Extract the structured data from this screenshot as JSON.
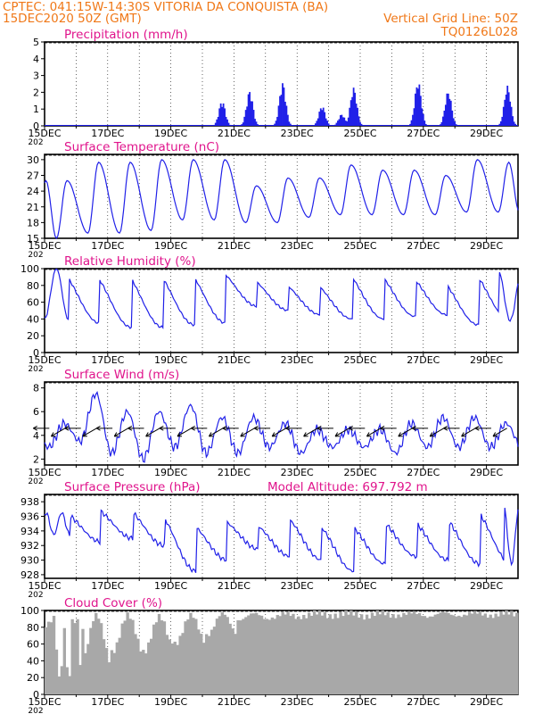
{
  "header": {
    "left_line1": "CPTEC:   041:15W-14:30S   VITORIA DA CONQUISTA (BA)",
    "left_line2": "15DEC2020 50Z (GMT)",
    "right_line2": "Vertical Grid Line: 50Z",
    "right_line3": "TQ0126L028"
  },
  "colors": {
    "header": "#f07818",
    "title": "#e0148c",
    "series": "#2020e8",
    "cloud": "#a8a8a8",
    "axis": "#000000"
  },
  "x_axis": {
    "start": "15DEC2020 00Z",
    "end": "30DEC2020 00Z",
    "tick_labels": [
      "15DEC",
      "17DEC",
      "19DEC",
      "21DEC",
      "23DEC",
      "25DEC",
      "27DEC",
      "29DEC"
    ],
    "year_fragment": "202"
  },
  "chart_data": [
    {
      "id": "precip",
      "type": "bar",
      "title": "Precipitation (mm/h)",
      "ylim": [
        0,
        5
      ],
      "yticks": [
        0,
        1,
        2,
        3,
        4,
        5
      ],
      "events": [
        {
          "center": "20DEC 15Z",
          "peak": 1.5
        },
        {
          "center": "21DEC 12Z",
          "peak": 2.1
        },
        {
          "center": "22DEC 13Z",
          "peak": 2.6
        },
        {
          "center": "23DEC 19Z",
          "peak": 1.2
        },
        {
          "center": "24DEC 10Z",
          "peak": 0.7
        },
        {
          "center": "24DEC 19Z",
          "peak": 2.3
        },
        {
          "center": "26DEC 20Z",
          "peak": 2.7
        },
        {
          "center": "27DEC 19Z",
          "peak": 2.1
        },
        {
          "center": "29DEC 16Z",
          "peak": 2.4
        }
      ]
    },
    {
      "id": "temp",
      "type": "line",
      "title": "Surface Temperature (nC)",
      "ylim": [
        15,
        31
      ],
      "yticks": [
        15,
        18,
        21,
        24,
        27,
        30
      ],
      "daily": [
        {
          "date": "15DEC",
          "min": 15.0,
          "max": 26.0
        },
        {
          "date": "16DEC",
          "min": 16.0,
          "max": 29.5
        },
        {
          "date": "17DEC",
          "min": 16.0,
          "max": 29.5
        },
        {
          "date": "18DEC",
          "min": 16.5,
          "max": 30.0
        },
        {
          "date": "19DEC",
          "min": 18.5,
          "max": 30.0
        },
        {
          "date": "20DEC",
          "min": 18.5,
          "max": 30.0
        },
        {
          "date": "21DEC",
          "min": 18.0,
          "max": 25.0
        },
        {
          "date": "22DEC",
          "min": 18.0,
          "max": 26.5
        },
        {
          "date": "23DEC",
          "min": 19.0,
          "max": 26.5
        },
        {
          "date": "24DEC",
          "min": 19.5,
          "max": 29.0
        },
        {
          "date": "25DEC",
          "min": 19.5,
          "max": 28.0
        },
        {
          "date": "26DEC",
          "min": 19.5,
          "max": 28.0
        },
        {
          "date": "27DEC",
          "min": 19.5,
          "max": 27.0
        },
        {
          "date": "28DEC",
          "min": 20.0,
          "max": 30.0
        },
        {
          "date": "29DEC",
          "min": 20.0,
          "max": 29.5
        }
      ]
    },
    {
      "id": "rh",
      "type": "line",
      "title": "Relative Humidity (%)",
      "ylim": [
        0,
        100
      ],
      "yticks": [
        0,
        20,
        40,
        60,
        80,
        100
      ],
      "daily": [
        {
          "date": "15DEC",
          "min": 40,
          "max": 100
        },
        {
          "date": "16DEC",
          "min": 35,
          "max": 98
        },
        {
          "date": "17DEC",
          "min": 30,
          "max": 100
        },
        {
          "date": "18DEC",
          "min": 30,
          "max": 100
        },
        {
          "date": "19DEC",
          "min": 33,
          "max": 100
        },
        {
          "date": "20DEC",
          "min": 35,
          "max": 100
        },
        {
          "date": "21DEC",
          "min": 55,
          "max": 90
        },
        {
          "date": "22DEC",
          "min": 50,
          "max": 85
        },
        {
          "date": "23DEC",
          "min": 45,
          "max": 85
        },
        {
          "date": "24DEC",
          "min": 40,
          "max": 100
        },
        {
          "date": "25DEC",
          "min": 40,
          "max": 98
        },
        {
          "date": "26DEC",
          "min": 43,
          "max": 95
        },
        {
          "date": "27DEC",
          "min": 45,
          "max": 90
        },
        {
          "date": "28DEC",
          "min": 33,
          "max": 100
        },
        {
          "date": "29DEC",
          "min": 38,
          "max": 98
        }
      ]
    },
    {
      "id": "wind",
      "type": "line",
      "title": "Surface Wind (m/s)",
      "ylim": [
        1.5,
        8.5
      ],
      "yticks": [
        2,
        4,
        6,
        8
      ],
      "daily": [
        {
          "date": "15DEC",
          "min": 3.0,
          "max": 5.0
        },
        {
          "date": "16DEC",
          "min": 3.5,
          "max": 7.5
        },
        {
          "date": "17DEC",
          "min": 2.5,
          "max": 6.0
        },
        {
          "date": "18DEC",
          "min": 2.0,
          "max": 6.0
        },
        {
          "date": "19DEC",
          "min": 3.0,
          "max": 6.5
        },
        {
          "date": "20DEC",
          "min": 2.5,
          "max": 5.5
        },
        {
          "date": "21DEC",
          "min": 2.5,
          "max": 5.5
        },
        {
          "date": "22DEC",
          "min": 3.0,
          "max": 5.0
        },
        {
          "date": "23DEC",
          "min": 2.5,
          "max": 4.5
        },
        {
          "date": "24DEC",
          "min": 3.0,
          "max": 4.5
        },
        {
          "date": "25DEC",
          "min": 3.0,
          "max": 4.5
        },
        {
          "date": "26DEC",
          "min": 2.5,
          "max": 5.0
        },
        {
          "date": "27DEC",
          "min": 3.0,
          "max": 5.5
        },
        {
          "date": "28DEC",
          "min": 3.0,
          "max": 5.5
        },
        {
          "date": "29DEC",
          "min": 3.0,
          "max": 5.0
        }
      ],
      "direction": "from E/NE (arrows point toward W/SW)"
    },
    {
      "id": "press",
      "type": "line",
      "title": "Surface Pressure (hPa)",
      "annotation": "Model Altitude: 697.792  m",
      "ylim": [
        927.5,
        939
      ],
      "yticks": [
        928,
        930,
        932,
        934,
        936,
        938
      ],
      "daily": [
        {
          "date": "15DEC",
          "min": 933.5,
          "max": 936.5
        },
        {
          "date": "16DEC",
          "min": 932.5,
          "max": 937.0
        },
        {
          "date": "17DEC",
          "min": 933.0,
          "max": 937.0
        },
        {
          "date": "18DEC",
          "min": 932.0,
          "max": 936.5
        },
        {
          "date": "19DEC",
          "min": 928.5,
          "max": 935.0
        },
        {
          "date": "20DEC",
          "min": 930.0,
          "max": 935.5
        },
        {
          "date": "21DEC",
          "min": 931.5,
          "max": 935.0
        },
        {
          "date": "22DEC",
          "min": 930.5,
          "max": 936.0
        },
        {
          "date": "23DEC",
          "min": 930.0,
          "max": 935.0
        },
        {
          "date": "24DEC",
          "min": 928.5,
          "max": 935.0
        },
        {
          "date": "25DEC",
          "min": 929.5,
          "max": 935.5
        },
        {
          "date": "26DEC",
          "min": 930.5,
          "max": 935.5
        },
        {
          "date": "27DEC",
          "min": 930.0,
          "max": 936.0
        },
        {
          "date": "28DEC",
          "min": 929.5,
          "max": 937.0
        },
        {
          "date": "29DEC",
          "min": 929.5,
          "max": 937.5
        }
      ]
    },
    {
      "id": "cloud",
      "type": "area",
      "title": "Cloud Cover (%)",
      "ylim": [
        0,
        100
      ],
      "yticks": [
        0,
        20,
        40,
        60,
        80,
        100
      ],
      "daily": [
        {
          "date": "15DEC",
          "min": 5,
          "max": 95
        },
        {
          "date": "16DEC",
          "min": 35,
          "max": 95
        },
        {
          "date": "17DEC",
          "min": 50,
          "max": 95
        },
        {
          "date": "18DEC",
          "min": 50,
          "max": 93
        },
        {
          "date": "19DEC",
          "min": 60,
          "max": 95
        },
        {
          "date": "20DEC",
          "min": 70,
          "max": 97
        },
        {
          "date": "21DEC",
          "min": 88,
          "max": 97
        },
        {
          "date": "22DEC",
          "min": 90,
          "max": 97
        },
        {
          "date": "23DEC",
          "min": 92,
          "max": 98
        },
        {
          "date": "24DEC",
          "min": 93,
          "max": 98
        },
        {
          "date": "25DEC",
          "min": 92,
          "max": 98
        },
        {
          "date": "26DEC",
          "min": 93,
          "max": 98
        },
        {
          "date": "27DEC",
          "min": 92,
          "max": 98
        },
        {
          "date": "28DEC",
          "min": 93,
          "max": 98
        },
        {
          "date": "29DEC",
          "min": 93,
          "max": 98
        }
      ]
    }
  ]
}
